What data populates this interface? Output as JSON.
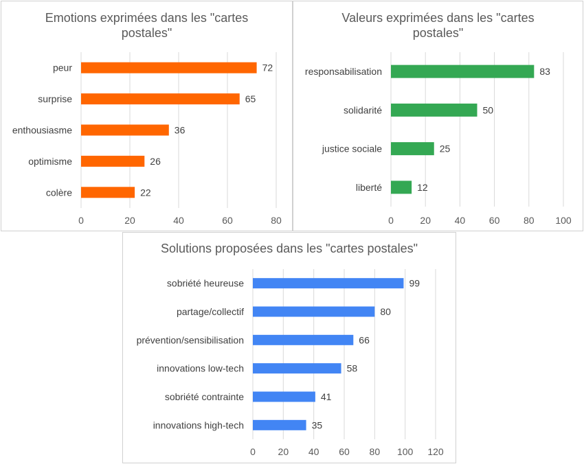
{
  "chart_data": [
    {
      "type": "bar",
      "orientation": "horizontal",
      "title": "Emotions exprimées dans les \"cartes postales\"",
      "title_lines": [
        "Emotions exprimées dans les \"cartes",
        "postales\""
      ],
      "categories": [
        "peur",
        "surprise",
        "enthousiasme",
        "optimisme",
        "colère"
      ],
      "values": [
        72,
        65,
        36,
        26,
        22
      ],
      "color": "#ff6600",
      "xlim": [
        0,
        80
      ],
      "xticks": [
        0,
        20,
        40,
        60,
        80
      ],
      "grid": true,
      "xlabel": "",
      "ylabel": ""
    },
    {
      "type": "bar",
      "orientation": "horizontal",
      "title": "Valeurs exprimées dans les \"cartes postales\"",
      "title_lines": [
        "Valeurs exprimées dans les \"cartes",
        "postales\""
      ],
      "categories": [
        "responsabilisation",
        "solidarité",
        "justice sociale",
        "liberté"
      ],
      "values": [
        83,
        50,
        25,
        12
      ],
      "color": "#34a853",
      "xlim": [
        0,
        100
      ],
      "xticks": [
        0,
        20,
        40,
        60,
        80,
        100
      ],
      "grid": true,
      "xlabel": "",
      "ylabel": ""
    },
    {
      "type": "bar",
      "orientation": "horizontal",
      "title": "Solutions proposées dans les \"cartes postales\"",
      "title_lines": [
        "Solutions proposées dans les \"cartes postales\""
      ],
      "categories": [
        "sobriété heureuse",
        "partage/collectif",
        "prévention/sensibilisation",
        "innovations low-tech",
        "sobriété contrainte",
        "innovations high-tech"
      ],
      "values": [
        99,
        80,
        66,
        58,
        41,
        35
      ],
      "color": "#4285f4",
      "xlim": [
        0,
        120
      ],
      "xticks": [
        0,
        20,
        40,
        60,
        80,
        100,
        120
      ],
      "grid": true,
      "xlabel": "",
      "ylabel": ""
    }
  ]
}
